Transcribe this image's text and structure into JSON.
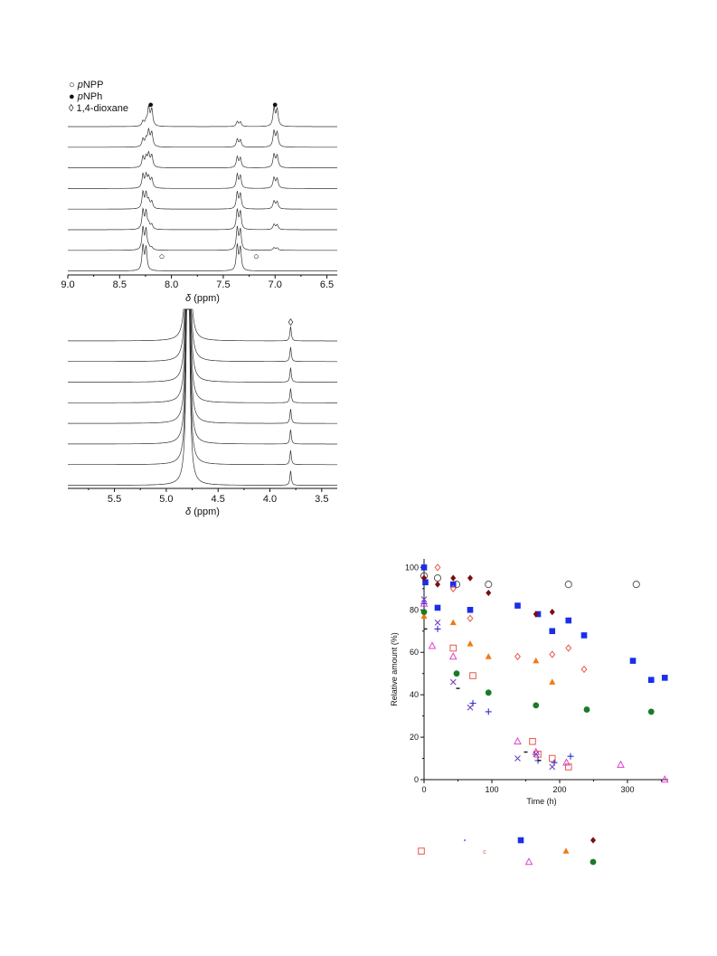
{
  "chart_data": [
    {
      "type": "line",
      "legend": [
        {
          "symbol": "○",
          "prefix": "p",
          "label": "NPP",
          "symbol_name": "open-circle"
        },
        {
          "symbol": "●",
          "prefix": "p",
          "label": "NPh",
          "symbol_name": "filled-circle"
        },
        {
          "symbol": "◊",
          "prefix": "",
          "label": "1,4-dioxane",
          "symbol_name": "open-diamond"
        }
      ],
      "legend_position": "top-left",
      "x_range": [
        9.0,
        6.4
      ],
      "x_ticks": [
        "9.0",
        "8.5",
        "8.0",
        "7.5",
        "7.0",
        "6.5"
      ],
      "xlabel_symbol": "δ",
      "xlabel_unit": "(ppm)",
      "trace_count": 8,
      "peak_markers": [
        {
          "x": 8.2,
          "symbol": "●"
        },
        {
          "x": 7.0,
          "symbol": "●"
        },
        {
          "x": 8.18,
          "symbol": "○"
        },
        {
          "x": 7.27,
          "symbol": "○"
        }
      ]
    },
    {
      "type": "line",
      "x_range": [
        5.95,
        3.35
      ],
      "x_ticks": [
        "5.5",
        "5.0",
        "4.5",
        "4.0",
        "3.5"
      ],
      "xlabel_symbol": "δ",
      "xlabel_unit": "(ppm)",
      "trace_count": 8,
      "peak_markers": [
        {
          "x": 3.8,
          "symbol": "◊"
        }
      ]
    },
    {
      "type": "scatter",
      "xlabel": "Time (h)",
      "ylabel": "Relative amount (%)",
      "xlim": [
        0,
        360
      ],
      "ylim": [
        0,
        104
      ],
      "x_ticks": [
        "0",
        "100",
        "200",
        "300"
      ],
      "y_ticks": [
        "0",
        "20",
        "40",
        "60",
        "80",
        "100"
      ],
      "grid": false,
      "series": [
        {
          "marker": "open-circle",
          "color": "#555555",
          "x": [
            0,
            20,
            48,
            95,
            213,
            313
          ],
          "y": [
            96,
            95,
            92,
            92,
            92,
            92
          ]
        },
        {
          "marker": "filled-square",
          "color": "#1a2fe6",
          "x": [
            0,
            2,
            20,
            43,
            68,
            138,
            168,
            189,
            213,
            236,
            308,
            335,
            355
          ],
          "y": [
            100,
            93,
            81,
            92,
            80,
            82,
            78,
            70,
            75,
            68,
            56,
            47,
            48
          ]
        },
        {
          "marker": "filled-diamond",
          "color": "#7a0e10",
          "x": [
            0,
            20,
            43,
            68,
            95,
            165,
            189
          ],
          "y": [
            95,
            92,
            95,
            95,
            88,
            78,
            79
          ]
        },
        {
          "marker": "open-diamond",
          "color": "#e8584a",
          "x": [
            20,
            43,
            68,
            138,
            189,
            213,
            236
          ],
          "y": [
            100,
            90,
            76,
            58,
            59,
            62,
            52
          ]
        },
        {
          "marker": "filled-triangle",
          "color": "#f07a10",
          "x": [
            0,
            43,
            68,
            95,
            165,
            189
          ],
          "y": [
            77,
            74,
            64,
            58,
            56,
            46
          ]
        },
        {
          "marker": "filled-circle",
          "color": "#1a7a28",
          "x": [
            0,
            48,
            95,
            165,
            240,
            335
          ],
          "y": [
            79,
            50,
            41,
            35,
            33,
            32
          ]
        },
        {
          "marker": "open-square",
          "color": "#e8584a",
          "x": [
            43,
            72,
            160,
            168,
            189,
            213
          ],
          "y": [
            62,
            49,
            18,
            12,
            10,
            6
          ]
        },
        {
          "marker": "open-triangle",
          "color": "#e040d0",
          "x": [
            0,
            12,
            43,
            138,
            165,
            210,
            290,
            355
          ],
          "y": [
            83,
            63,
            58,
            18,
            13,
            8,
            7,
            0
          ]
        },
        {
          "marker": "plus",
          "color": "#3030d0",
          "x": [
            0,
            20,
            72,
            95,
            168,
            192,
            216
          ],
          "y": [
            83,
            71,
            36,
            32,
            9,
            8,
            11
          ]
        },
        {
          "marker": "cross",
          "color": "#7040c0",
          "x": [
            0,
            20,
            43,
            68,
            138,
            165,
            189
          ],
          "y": [
            85,
            74,
            46,
            34,
            10,
            12,
            6
          ]
        },
        {
          "marker": "dash",
          "color": "#111111",
          "x": [
            2,
            50,
            150,
            170
          ],
          "y": [
            71,
            43,
            13,
            9
          ]
        }
      ],
      "key_markers": [
        {
          "marker": "open-square",
          "color": "#e8584a"
        },
        {
          "marker": "dot",
          "color": "#3030d0"
        },
        {
          "marker": "small-c",
          "color": "#e8584a",
          "text": "c"
        },
        {
          "marker": "filled-square",
          "color": "#1a2fe6"
        },
        {
          "marker": "open-triangle",
          "color": "#e040d0"
        },
        {
          "marker": "filled-triangle",
          "color": "#f07a10"
        },
        {
          "marker": "filled-diamond",
          "color": "#7a0e10"
        },
        {
          "marker": "filled-circle",
          "color": "#1a7a28"
        }
      ]
    }
  ]
}
